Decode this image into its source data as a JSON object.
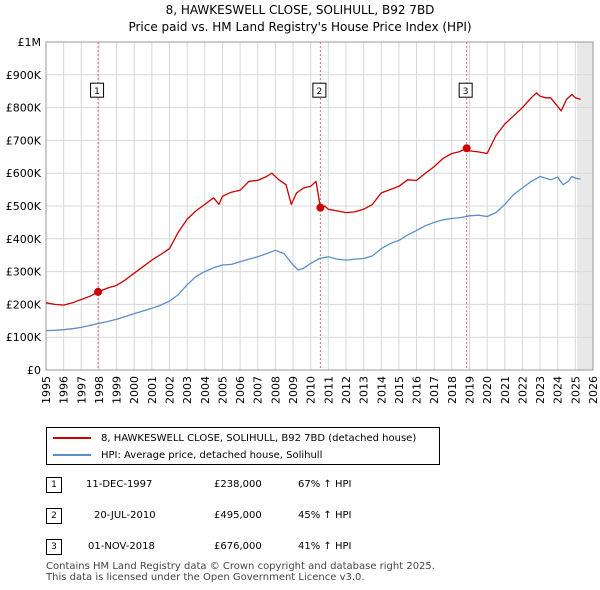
{
  "chart_data": {
    "type": "line",
    "title": "8, HAWKESWELL CLOSE, SOLIHULL, B92 7BD",
    "subtitle": "Price paid vs. HM Land Registry's House Price Index (HPI)",
    "xlabel": "",
    "ylabel": "",
    "xlim": [
      1995,
      2026
    ],
    "ylim": [
      0,
      1000000
    ],
    "x_ticks": [
      1995,
      1996,
      1997,
      1998,
      1999,
      2000,
      2001,
      2002,
      2003,
      2004,
      2005,
      2006,
      2007,
      2008,
      2009,
      2010,
      2011,
      2012,
      2013,
      2014,
      2015,
      2016,
      2017,
      2018,
      2019,
      2020,
      2021,
      2022,
      2023,
      2024,
      2025,
      2026
    ],
    "y_ticks": [
      {
        "value": 0,
        "label": "£0"
      },
      {
        "value": 100000,
        "label": "£100K"
      },
      {
        "value": 200000,
        "label": "£200K"
      },
      {
        "value": 300000,
        "label": "£300K"
      },
      {
        "value": 400000,
        "label": "£400K"
      },
      {
        "value": 500000,
        "label": "£500K"
      },
      {
        "value": 600000,
        "label": "£600K"
      },
      {
        "value": 700000,
        "label": "£700K"
      },
      {
        "value": 800000,
        "label": "£800K"
      },
      {
        "value": 900000,
        "label": "£900K"
      },
      {
        "value": 1000000,
        "label": "£1M"
      }
    ],
    "grid": true,
    "forecast_start": 2025.1,
    "series": [
      {
        "name": "8, HAWKESWELL CLOSE, SOLIHULL, B92 7BD (detached house)",
        "color": "#cc0000",
        "x": [
          1995.0,
          1995.5,
          1996.0,
          1996.5,
          1997.0,
          1997.5,
          1997.95,
          1998.5,
          1999.0,
          1999.5,
          2000.0,
          2000.5,
          2001.0,
          2001.5,
          2002.0,
          2002.5,
          2003.0,
          2003.5,
          2004.0,
          2004.5,
          2004.8,
          2005.0,
          2005.5,
          2006.0,
          2006.5,
          2007.0,
          2007.5,
          2007.8,
          2008.2,
          2008.6,
          2008.9,
          2009.2,
          2009.6,
          2010.0,
          2010.3,
          2010.55,
          2010.8,
          2011.0,
          2011.5,
          2012.0,
          2012.5,
          2013.0,
          2013.5,
          2014.0,
          2014.5,
          2015.0,
          2015.5,
          2016.0,
          2016.5,
          2017.0,
          2017.5,
          2018.0,
          2018.4,
          2018.84,
          2019.0,
          2019.5,
          2020.0,
          2020.5,
          2021.0,
          2021.5,
          2022.0,
          2022.5,
          2022.8,
          2023.0,
          2023.3,
          2023.6,
          2023.9,
          2024.2,
          2024.5,
          2024.8,
          2025.0,
          2025.3
        ],
        "values": [
          205000,
          200000,
          198000,
          205000,
          215000,
          225000,
          238000,
          250000,
          258000,
          275000,
          295000,
          315000,
          335000,
          352000,
          370000,
          420000,
          460000,
          485000,
          505000,
          525000,
          505000,
          530000,
          542000,
          548000,
          575000,
          578000,
          590000,
          600000,
          580000,
          565000,
          505000,
          540000,
          555000,
          560000,
          575000,
          495000,
          500000,
          490000,
          485000,
          480000,
          482000,
          490000,
          505000,
          540000,
          550000,
          560000,
          580000,
          578000,
          600000,
          620000,
          645000,
          660000,
          665000,
          676000,
          668000,
          665000,
          660000,
          715000,
          750000,
          775000,
          800000,
          830000,
          845000,
          835000,
          830000,
          830000,
          810000,
          790000,
          825000,
          840000,
          830000,
          825000
        ]
      },
      {
        "name": "HPI: Average price, detached house, Solihull",
        "color": "#5b8fc9",
        "x": [
          1995.0,
          1995.5,
          1996.0,
          1996.5,
          1997.0,
          1997.5,
          1998.0,
          1998.5,
          1999.0,
          1999.5,
          2000.0,
          2000.5,
          2001.0,
          2001.5,
          2002.0,
          2002.5,
          2003.0,
          2003.5,
          2004.0,
          2004.5,
          2005.0,
          2005.5,
          2006.0,
          2006.5,
          2007.0,
          2007.5,
          2008.0,
          2008.5,
          2009.0,
          2009.3,
          2009.6,
          2010.0,
          2010.5,
          2011.0,
          2011.5,
          2012.0,
          2012.5,
          2013.0,
          2013.5,
          2014.0,
          2014.5,
          2015.0,
          2015.5,
          2016.0,
          2016.5,
          2017.0,
          2017.5,
          2018.0,
          2018.5,
          2019.0,
          2019.5,
          2020.0,
          2020.5,
          2021.0,
          2021.5,
          2022.0,
          2022.5,
          2023.0,
          2023.3,
          2023.6,
          2024.0,
          2024.3,
          2024.6,
          2024.8,
          2025.0,
          2025.3
        ],
        "values": [
          120000,
          121000,
          123000,
          126000,
          130000,
          136000,
          142000,
          148000,
          155000,
          163000,
          172000,
          180000,
          188000,
          198000,
          210000,
          230000,
          260000,
          285000,
          300000,
          312000,
          320000,
          322000,
          330000,
          338000,
          345000,
          355000,
          365000,
          355000,
          320000,
          305000,
          310000,
          325000,
          340000,
          345000,
          338000,
          335000,
          338000,
          340000,
          348000,
          370000,
          385000,
          395000,
          412000,
          425000,
          440000,
          450000,
          458000,
          462000,
          465000,
          470000,
          472000,
          468000,
          480000,
          505000,
          535000,
          555000,
          575000,
          590000,
          585000,
          580000,
          588000,
          565000,
          575000,
          590000,
          585000,
          582000
        ]
      }
    ],
    "sales": [
      {
        "id": "1",
        "x": 1997.95,
        "value": 238000
      },
      {
        "id": "2",
        "x": 2010.55,
        "value": 495000
      },
      {
        "id": "3",
        "x": 2018.84,
        "value": 676000
      }
    ]
  },
  "legend": {
    "property_label": "8, HAWKESWELL CLOSE, SOLIHULL, B92 7BD (detached house)",
    "hpi_label": "HPI: Average price, detached house, Solihull"
  },
  "sales_table": [
    {
      "id": "1",
      "date": "11-DEC-1997",
      "price": "£238,000",
      "hpi": "67% ↑ HPI"
    },
    {
      "id": "2",
      "date": "20-JUL-2010",
      "price": "£495,000",
      "hpi": "45% ↑ HPI"
    },
    {
      "id": "3",
      "date": "01-NOV-2018",
      "price": "£676,000",
      "hpi": "41% ↑ HPI"
    }
  ],
  "footer": {
    "line1": "Contains HM Land Registry data © Crown copyright and database right 2025.",
    "line2": "This data is licensed under the Open Government Licence v3.0."
  }
}
